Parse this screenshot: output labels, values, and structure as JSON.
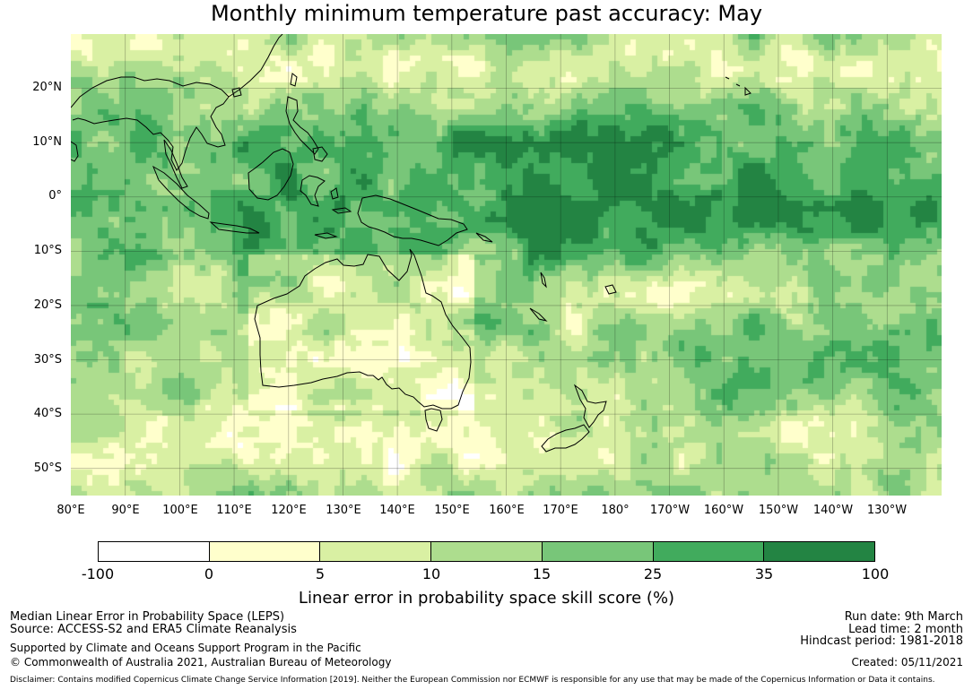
{
  "title": "Monthly minimum temperature past accuracy: May",
  "map": {
    "lat_labels": [
      "20°N",
      "10°N",
      "0°",
      "10°S",
      "20°S",
      "30°S",
      "40°S",
      "50°S"
    ],
    "lon_labels": [
      "80°E",
      "90°E",
      "100°E",
      "110°E",
      "120°E",
      "130°E",
      "140°E",
      "150°E",
      "160°E",
      "170°E",
      "180°",
      "170°W",
      "160°W",
      "150°W",
      "140°W",
      "130°W"
    ],
    "lat_range": [
      -55,
      30
    ],
    "lon_range": [
      80,
      240
    ],
    "gridlines": true
  },
  "colorbar": {
    "ticks": [
      "-100",
      "0",
      "5",
      "10",
      "15",
      "25",
      "35",
      "100"
    ],
    "colors": [
      "#ffffff",
      "#ffffcc",
      "#d9f0a3",
      "#addd8e",
      "#78c679",
      "#41ab5d",
      "#238443"
    ],
    "label": "Linear error in probability space skill score (%)"
  },
  "footer": {
    "left": {
      "line1": "Median Linear Error in Probability Space (LEPS)",
      "line2": "Source: ACCESS-S2 and ERA5 Climate Reanalysis",
      "line3": "Supported by Climate and Oceans Support Program in the Pacific",
      "line4": "© Commonwealth of Australia 2021, Australian Bureau of Meteorology"
    },
    "right": {
      "run_date": "Run date: 9th March",
      "lead_time": "Lead time: 2 month",
      "hindcast": "Hindcast period: 1981-2018",
      "created": "Created: 05/11/2021"
    },
    "disclaimer": "Disclaimer: Contains modified Copernicus Climate Change Service Information [2019]. Neither the European Commission nor ECMWF is responsible for any use that may be made of the Copernicus Information or Data it contains."
  }
}
